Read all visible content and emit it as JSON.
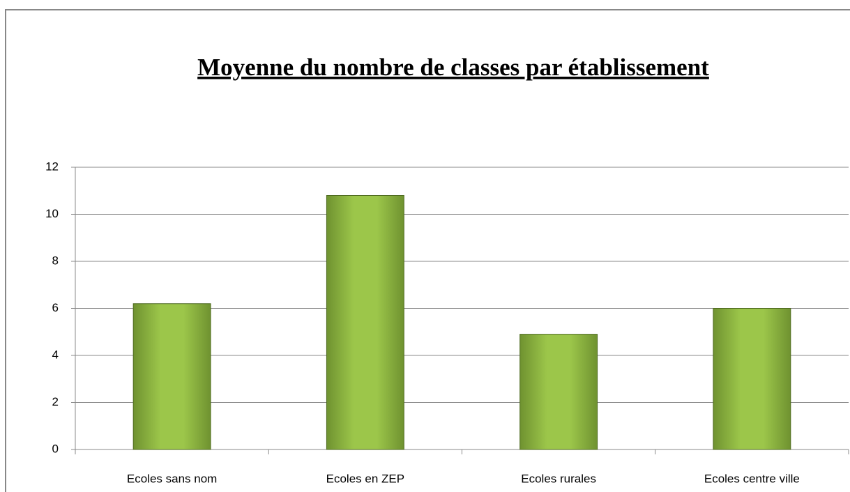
{
  "chart_data": {
    "type": "bar",
    "title": "Moyenne du nombre de classes par établissement",
    "categories": [
      "Ecoles sans nom",
      "Ecoles en ZEP",
      "Ecoles rurales",
      "Ecoles centre ville"
    ],
    "values": [
      6.2,
      10.8,
      4.9,
      6
    ],
    "color": "#8db43e",
    "ylim": [
      0,
      12
    ],
    "yticks": [
      0,
      2,
      4,
      6,
      8,
      10,
      12
    ],
    "grid": true
  }
}
